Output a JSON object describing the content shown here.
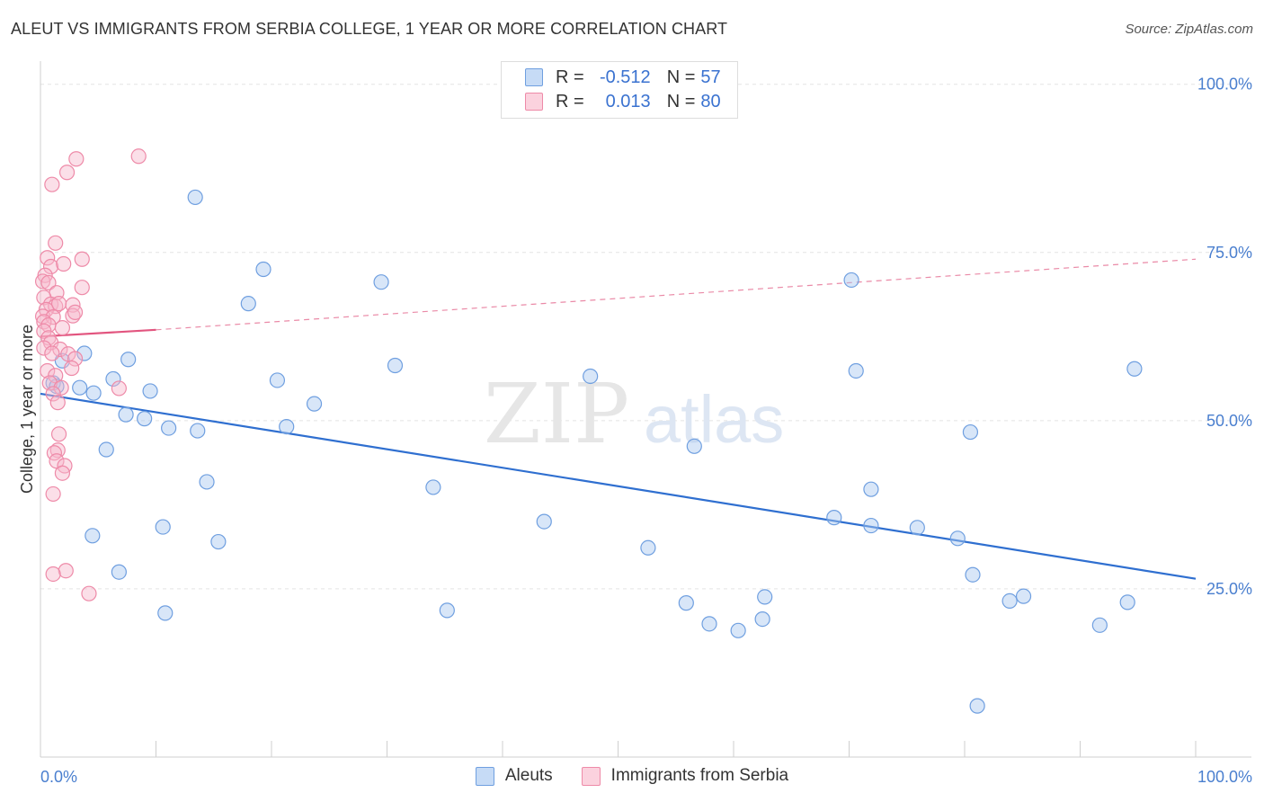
{
  "title": "ALEUT VS IMMIGRANTS FROM SERBIA COLLEGE, 1 YEAR OR MORE CORRELATION CHART",
  "source": "Source: ZipAtlas.com",
  "watermark": {
    "zip": "ZIP",
    "atlas": "atlas"
  },
  "legend": {
    "rows": [
      {
        "r_label": "R =",
        "r_value": "-0.512",
        "n_label": "N =",
        "n_value": "57",
        "color": "#a9c8f0"
      },
      {
        "r_label": "R =",
        "r_value": "0.013",
        "n_label": "N =",
        "n_value": "80",
        "color": "#f7b7cb"
      }
    ]
  },
  "bottom_legend": [
    {
      "label": "Aleuts",
      "color": "#a9c8f0"
    },
    {
      "label": "Immigrants from Serbia",
      "color": "#f7b7cb"
    }
  ],
  "chart_data": {
    "type": "scatter",
    "title": "ALEUT VS IMMIGRANTS FROM SERBIA COLLEGE, 1 YEAR OR MORE CORRELATION CHART",
    "xlabel": "",
    "ylabel": "College, 1 year or more",
    "xlim": [
      0,
      100
    ],
    "ylim": [
      0,
      102.5
    ],
    "x_tick_labels": [
      "0.0%",
      "100.0%"
    ],
    "y_ticks": [
      25,
      50,
      75,
      100
    ],
    "y_tick_labels": [
      "25.0%",
      "50.0%",
      "75.0%",
      "100.0%"
    ],
    "grid": true,
    "series": [
      {
        "name": "Aleuts",
        "color": "#6f9fe0",
        "fill": "#a9c8f0",
        "points": [
          [
            13.4,
            83.2
          ],
          [
            19.3,
            72.5
          ],
          [
            18.0,
            67.4
          ],
          [
            29.5,
            70.6
          ],
          [
            70.2,
            70.9
          ],
          [
            3.8,
            60.0
          ],
          [
            7.6,
            59.1
          ],
          [
            1.9,
            58.9
          ],
          [
            30.7,
            58.2
          ],
          [
            94.7,
            57.7
          ],
          [
            70.6,
            57.4
          ],
          [
            47.6,
            56.6
          ],
          [
            6.3,
            56.2
          ],
          [
            20.5,
            56.0
          ],
          [
            1.1,
            55.6
          ],
          [
            1.4,
            55.1
          ],
          [
            3.4,
            54.9
          ],
          [
            4.6,
            54.1
          ],
          [
            9.5,
            54.4
          ],
          [
            23.7,
            52.5
          ],
          [
            7.4,
            50.9
          ],
          [
            9.0,
            50.3
          ],
          [
            11.1,
            48.9
          ],
          [
            13.6,
            48.5
          ],
          [
            21.3,
            49.1
          ],
          [
            80.5,
            48.3
          ],
          [
            56.6,
            46.2
          ],
          [
            5.7,
            45.7
          ],
          [
            14.4,
            40.9
          ],
          [
            34.0,
            40.1
          ],
          [
            71.9,
            39.8
          ],
          [
            68.7,
            35.6
          ],
          [
            43.6,
            35.0
          ],
          [
            10.6,
            34.2
          ],
          [
            71.9,
            34.4
          ],
          [
            75.9,
            34.1
          ],
          [
            79.4,
            32.5
          ],
          [
            4.5,
            32.9
          ],
          [
            15.4,
            32.0
          ],
          [
            52.6,
            31.1
          ],
          [
            80.7,
            27.1
          ],
          [
            6.8,
            27.5
          ],
          [
            62.7,
            23.8
          ],
          [
            83.9,
            23.2
          ],
          [
            85.1,
            23.9
          ],
          [
            55.9,
            22.9
          ],
          [
            94.1,
            23.0
          ],
          [
            10.8,
            21.4
          ],
          [
            35.2,
            21.8
          ],
          [
            62.5,
            20.5
          ],
          [
            57.9,
            19.8
          ],
          [
            60.4,
            18.8
          ],
          [
            91.7,
            19.6
          ],
          [
            81.1,
            7.6
          ]
        ],
        "trend": {
          "x0": 0,
          "y0": 54.0,
          "x1": 100,
          "y1": 26.5
        }
      },
      {
        "name": "Immigrants from Serbia",
        "color": "#ee8aa8",
        "fill": "#f7b7cb",
        "points": [
          [
            8.5,
            89.3
          ],
          [
            3.1,
            88.9
          ],
          [
            2.3,
            86.9
          ],
          [
            1.0,
            85.1
          ],
          [
            1.3,
            76.4
          ],
          [
            0.6,
            74.2
          ],
          [
            3.6,
            74.0
          ],
          [
            0.9,
            72.9
          ],
          [
            2.0,
            73.3
          ],
          [
            0.4,
            71.6
          ],
          [
            0.2,
            70.7
          ],
          [
            0.7,
            70.5
          ],
          [
            3.6,
            69.8
          ],
          [
            1.4,
            69.0
          ],
          [
            0.3,
            68.3
          ],
          [
            0.9,
            67.3
          ],
          [
            1.3,
            67.0
          ],
          [
            1.6,
            67.4
          ],
          [
            2.8,
            67.2
          ],
          [
            0.5,
            66.5
          ],
          [
            0.2,
            65.5
          ],
          [
            1.1,
            65.4
          ],
          [
            2.8,
            65.6
          ],
          [
            3.0,
            66.1
          ],
          [
            0.3,
            64.7
          ],
          [
            0.7,
            64.2
          ],
          [
            1.9,
            63.8
          ],
          [
            0.3,
            63.3
          ],
          [
            0.7,
            62.3
          ],
          [
            0.9,
            61.6
          ],
          [
            0.3,
            60.8
          ],
          [
            1.7,
            60.6
          ],
          [
            1.0,
            60.0
          ],
          [
            2.4,
            59.9
          ],
          [
            3.0,
            59.2
          ],
          [
            0.6,
            57.4
          ],
          [
            2.7,
            57.8
          ],
          [
            1.3,
            56.7
          ],
          [
            0.8,
            55.6
          ],
          [
            1.8,
            54.9
          ],
          [
            6.8,
            54.8
          ],
          [
            1.1,
            54.0
          ],
          [
            1.5,
            52.7
          ],
          [
            1.6,
            48.0
          ],
          [
            1.5,
            45.6
          ],
          [
            1.2,
            45.2
          ],
          [
            1.4,
            44.0
          ],
          [
            2.1,
            43.3
          ],
          [
            1.9,
            42.2
          ],
          [
            1.1,
            39.1
          ],
          [
            2.2,
            27.7
          ],
          [
            1.1,
            27.2
          ],
          [
            4.2,
            24.3
          ]
        ],
        "trend": {
          "x0": 0,
          "y0": 62.5,
          "x1": 10,
          "y1": 63.5,
          "dashed_to_x": 100,
          "dashed_to_y": 74.0
        }
      }
    ]
  }
}
